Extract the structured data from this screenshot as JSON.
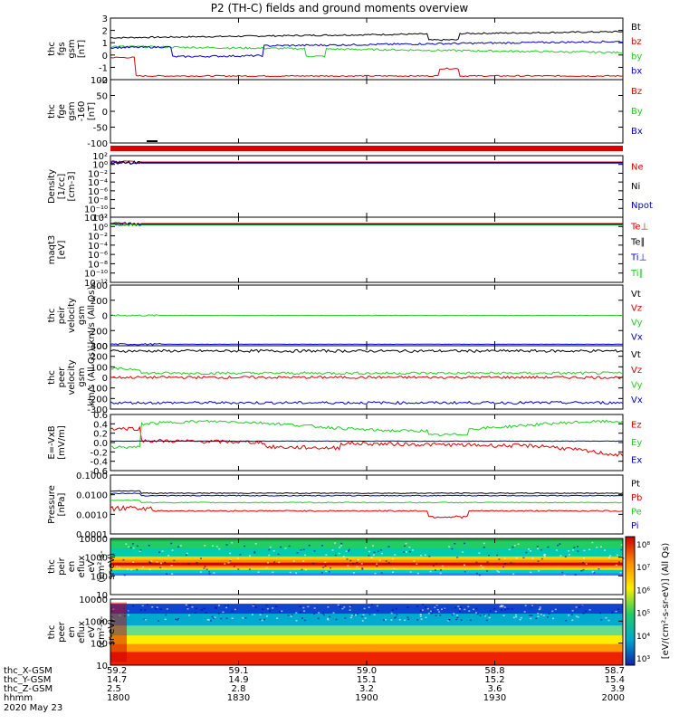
{
  "title": "P2 (TH-C) fields and ground moments overview",
  "date_label": "2020 May 23",
  "colors": {
    "black": "#000000",
    "red": "#dd0000",
    "green": "#22cc22",
    "blue": "#0000cc",
    "purple": "#6600aa"
  },
  "chart_data": [
    {
      "id": "p1",
      "type": "line",
      "ylabel": [
        "thc",
        "fgs",
        "gsm",
        "[nT]"
      ],
      "ylim": [
        -2,
        3
      ],
      "yticks": [
        "3",
        "2",
        "1",
        "0",
        "-1",
        "-2"
      ],
      "series": [
        {
          "name": "Bt",
          "color": "#000000",
          "base": 1.8
        },
        {
          "name": "bz",
          "color": "#dd0000",
          "base": -1.5
        },
        {
          "name": "by",
          "color": "#22cc22",
          "base": 0.5
        },
        {
          "name": "bx",
          "color": "#0000cc",
          "base": 1.0
        }
      ]
    },
    {
      "id": "p2",
      "type": "line",
      "ylabel": [
        "thc",
        "fge",
        "gsm",
        "-160",
        "[nT]"
      ],
      "ylim": [
        -130,
        100
      ],
      "yticks": [
        "100",
        "50",
        "0",
        "-50",
        "-100"
      ],
      "series": [
        {
          "name": "Bz",
          "color": "#dd0000"
        },
        {
          "name": "By",
          "color": "#22cc22"
        },
        {
          "name": "Bx",
          "color": "#0000cc"
        }
      ]
    },
    {
      "id": "p3",
      "type": "line",
      "ylabel": [
        "Density",
        "[1/cc]",
        "[cm-3]"
      ],
      "yscale": "log",
      "yticks": [
        "10²",
        "10⁰",
        "10⁻²",
        "10⁻⁴",
        "10⁻⁶",
        "10⁻⁸",
        "10⁻¹⁰",
        "10⁻¹²"
      ],
      "series": [
        {
          "name": "Ne",
          "color": "#dd0000"
        },
        {
          "name": "Ni",
          "color": "#000000"
        },
        {
          "name": "Npot",
          "color": "#0000cc"
        }
      ]
    },
    {
      "id": "p4",
      "type": "line",
      "ylabel": [
        "maqt3",
        "[eV]"
      ],
      "yscale": "log",
      "yticks": [
        "10²",
        "10⁰",
        "10⁻²",
        "10⁻⁴",
        "10⁻⁶",
        "10⁻⁸",
        "10⁻¹⁰",
        "10⁻¹²"
      ],
      "series": [
        {
          "name": "Te⊥",
          "color": "#dd0000"
        },
        {
          "name": "Te∥",
          "color": "#000000"
        },
        {
          "name": "Ti⊥",
          "color": "#0000cc"
        },
        {
          "name": "Ti∥",
          "color": "#22cc22"
        }
      ]
    },
    {
      "id": "p5",
      "type": "line",
      "ylabel": [
        "thc",
        "peir",
        "velocity",
        "gsm",
        "km/s (All Qs)"
      ],
      "ylim": [
        -400,
        400
      ],
      "yticks": [
        "400",
        "200",
        "0",
        "-200",
        "-400"
      ],
      "series": [
        {
          "name": "Vt",
          "color": "#000000"
        },
        {
          "name": "Vz",
          "color": "#dd0000"
        },
        {
          "name": "Vy",
          "color": "#22cc22",
          "base": 0
        },
        {
          "name": "Vx",
          "color": "#0000cc",
          "base": -380
        }
      ]
    },
    {
      "id": "p6",
      "type": "line",
      "ylabel": [
        "thc",
        "peer",
        "velocity",
        "gsm",
        "km/s (All Qs)"
      ],
      "ylim": [
        -300,
        300
      ],
      "yticks": [
        "300",
        "200",
        "100",
        "0",
        "-100",
        "-200",
        "-300"
      ],
      "series": [
        {
          "name": "Vt",
          "color": "#000000",
          "base": 250
        },
        {
          "name": "Vz",
          "color": "#dd0000",
          "base": 0
        },
        {
          "name": "Vy",
          "color": "#22cc22",
          "base": 40
        },
        {
          "name": "Vx",
          "color": "#0000cc",
          "base": -240
        }
      ]
    },
    {
      "id": "p7",
      "type": "line",
      "ylabel": [
        "E=-VxB",
        "[mV/m]"
      ],
      "ylim": [
        -0.6,
        0.6
      ],
      "yticks": [
        "0.6",
        "0.4",
        "0.2",
        "0.0",
        "-0.2",
        "-0.4",
        "-0.6"
      ],
      "series": [
        {
          "name": "Ez",
          "color": "#dd0000"
        },
        {
          "name": "Ey",
          "color": "#22cc22"
        },
        {
          "name": "Ex",
          "color": "#0000cc"
        }
      ]
    },
    {
      "id": "p8",
      "type": "line",
      "ylabel": [
        "Pressure",
        "[nPa]"
      ],
      "yscale": "log",
      "yticks": [
        "0.1000",
        "0.0100",
        "0.0010",
        "0.0001"
      ],
      "series": [
        {
          "name": "Pt",
          "color": "#000000",
          "base": 0.012
        },
        {
          "name": "Pb",
          "color": "#dd0000",
          "base": 0.0015
        },
        {
          "name": "Pe",
          "color": "#22cc22",
          "base": 0.004
        },
        {
          "name": "Pi",
          "color": "#0000cc",
          "base": 0.009
        }
      ]
    },
    {
      "id": "p9",
      "type": "heatmap",
      "ylabel": [
        "thc",
        "peir",
        "en",
        "eflux",
        "eV",
        "(cm²-s-",
        "sr-eV)"
      ],
      "yscale": "log",
      "yticks": [
        "10000",
        "1000",
        "100",
        "10"
      ]
    },
    {
      "id": "p10",
      "type": "heatmap",
      "ylabel": [
        "thc",
        "peer",
        "en",
        "eflux",
        "eV",
        "(cm²-s-",
        "sr-eV)"
      ],
      "yscale": "log",
      "yticks": [
        "10000",
        "1000",
        "100",
        "10"
      ]
    }
  ],
  "colorbar": {
    "ticks": [
      "10⁸",
      "10⁷",
      "10⁶",
      "10⁵",
      "10⁴",
      "10³"
    ],
    "label": "[eV/(cm²-s-sr-eV)] (All Qs)"
  },
  "xaxis": {
    "row_labels": [
      "thc_X-GSM",
      "thc_Y-GSM",
      "thc_Z-GSM",
      "hhmm"
    ],
    "ticks": [
      {
        "rows": [
          "59.2",
          "14.7",
          "2.5",
          "1800"
        ]
      },
      {
        "rows": [
          "59.1",
          "14.9",
          "2.8",
          "1830"
        ]
      },
      {
        "rows": [
          "59.0",
          "15.1",
          "3.2",
          "1900"
        ]
      },
      {
        "rows": [
          "58.8",
          "15.2",
          "3.6",
          "1930"
        ]
      },
      {
        "rows": [
          "58.7",
          "15.4",
          "3.9",
          "2000"
        ]
      }
    ]
  }
}
